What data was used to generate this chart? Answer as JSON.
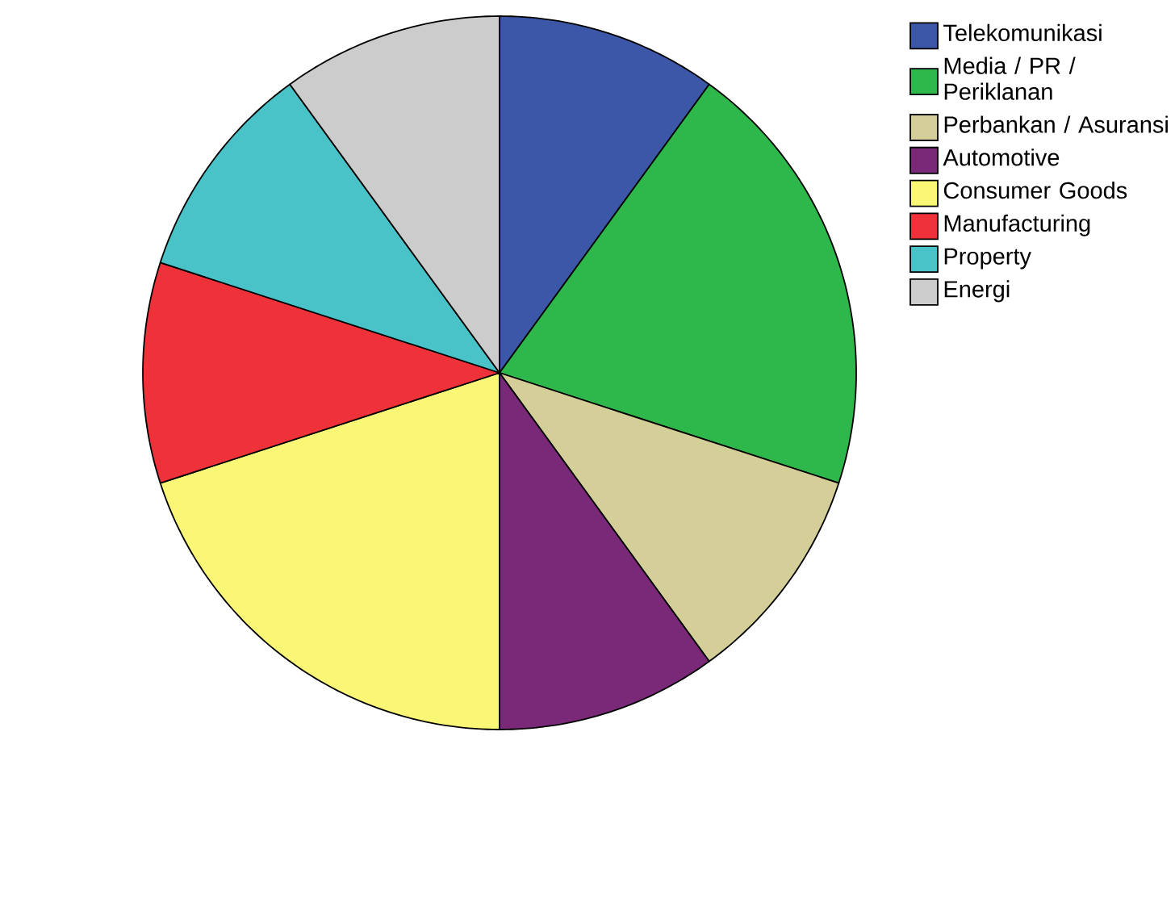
{
  "chart_data": {
    "type": "pie",
    "categories": [
      "Telekomunikasi",
      "Media / PR / Periklanan",
      "Perbankan / Asuransi",
      "Automotive",
      "Consumer Goods",
      "Manufacturing",
      "Property",
      "Energi"
    ],
    "values": [
      10,
      20,
      10,
      10,
      20,
      10,
      10,
      10
    ],
    "colors": [
      "#3d57a8",
      "#2eb74a",
      "#d4ce98",
      "#7a2878",
      "#faf676",
      "#ef323a",
      "#49c3c8",
      "#cccccc"
    ],
    "legend": "top right"
  }
}
